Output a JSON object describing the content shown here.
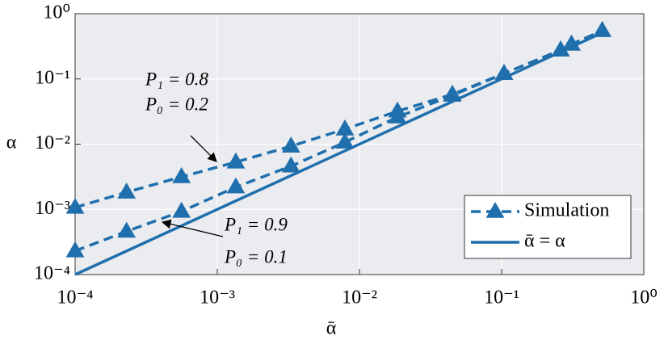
{
  "chart_data": {
    "type": "line",
    "xlabel": "ᾱ",
    "ylabel": "α",
    "xscale": "log",
    "yscale": "log",
    "xlim": [
      0.0001,
      1
    ],
    "ylim": [
      0.0001,
      1
    ],
    "xticks": [
      {
        "value": 0.0001,
        "label": "10⁻⁴"
      },
      {
        "value": 0.001,
        "label": "10⁻³"
      },
      {
        "value": 0.01,
        "label": "10⁻²"
      },
      {
        "value": 0.1,
        "label": "10⁻¹"
      },
      {
        "value": 1,
        "label": "10⁰"
      }
    ],
    "yticks": [
      {
        "value": 0.0001,
        "label": "10⁻⁴"
      },
      {
        "value": 0.001,
        "label": "10⁻³"
      },
      {
        "value": 0.01,
        "label": "10⁻²"
      },
      {
        "value": 0.1,
        "label": "10⁻¹"
      },
      {
        "value": 1,
        "label": "10⁰"
      }
    ],
    "grid": true,
    "legend_loc": "lower right",
    "series": [
      {
        "name": "Simulation",
        "color": "#1f6fad",
        "linestyle": "dashed",
        "marker": "triangle",
        "x": [
          0.0001,
          0.00023,
          0.00056,
          0.00135,
          0.0033,
          0.0079,
          0.0185,
          0.045,
          0.104,
          0.26,
          0.31,
          0.51
        ],
        "values": [
          0.00107,
          0.00183,
          0.00315,
          0.0053,
          0.0093,
          0.017,
          0.032,
          0.058,
          0.121,
          0.277,
          0.34,
          0.55
        ]
      },
      {
        "color": "#1f6fad",
        "linestyle": "dashed",
        "marker": "triangle",
        "x": [
          0.0001,
          0.00023,
          0.00056,
          0.00135,
          0.0033,
          0.0079,
          0.0185,
          0.045,
          0.104,
          0.26,
          0.31,
          0.51
        ],
        "values": [
          0.00023,
          0.00046,
          0.00093,
          0.0022,
          0.0046,
          0.0107,
          0.026,
          0.056,
          0.121,
          0.277,
          0.34,
          0.55
        ]
      },
      {
        "name": "ᾱ = α",
        "color": "#1f6fad",
        "linestyle": "solid",
        "x": [
          0.0001,
          0.5
        ],
        "values": [
          0.0001,
          0.5
        ]
      }
    ],
    "annotations": [
      {
        "text": "P₁ = 0.8"
      },
      {
        "text": "P₀ = 0.2"
      },
      {
        "text": "P₁ = 0.9"
      },
      {
        "text": "P₀ = 0.1"
      }
    ]
  }
}
